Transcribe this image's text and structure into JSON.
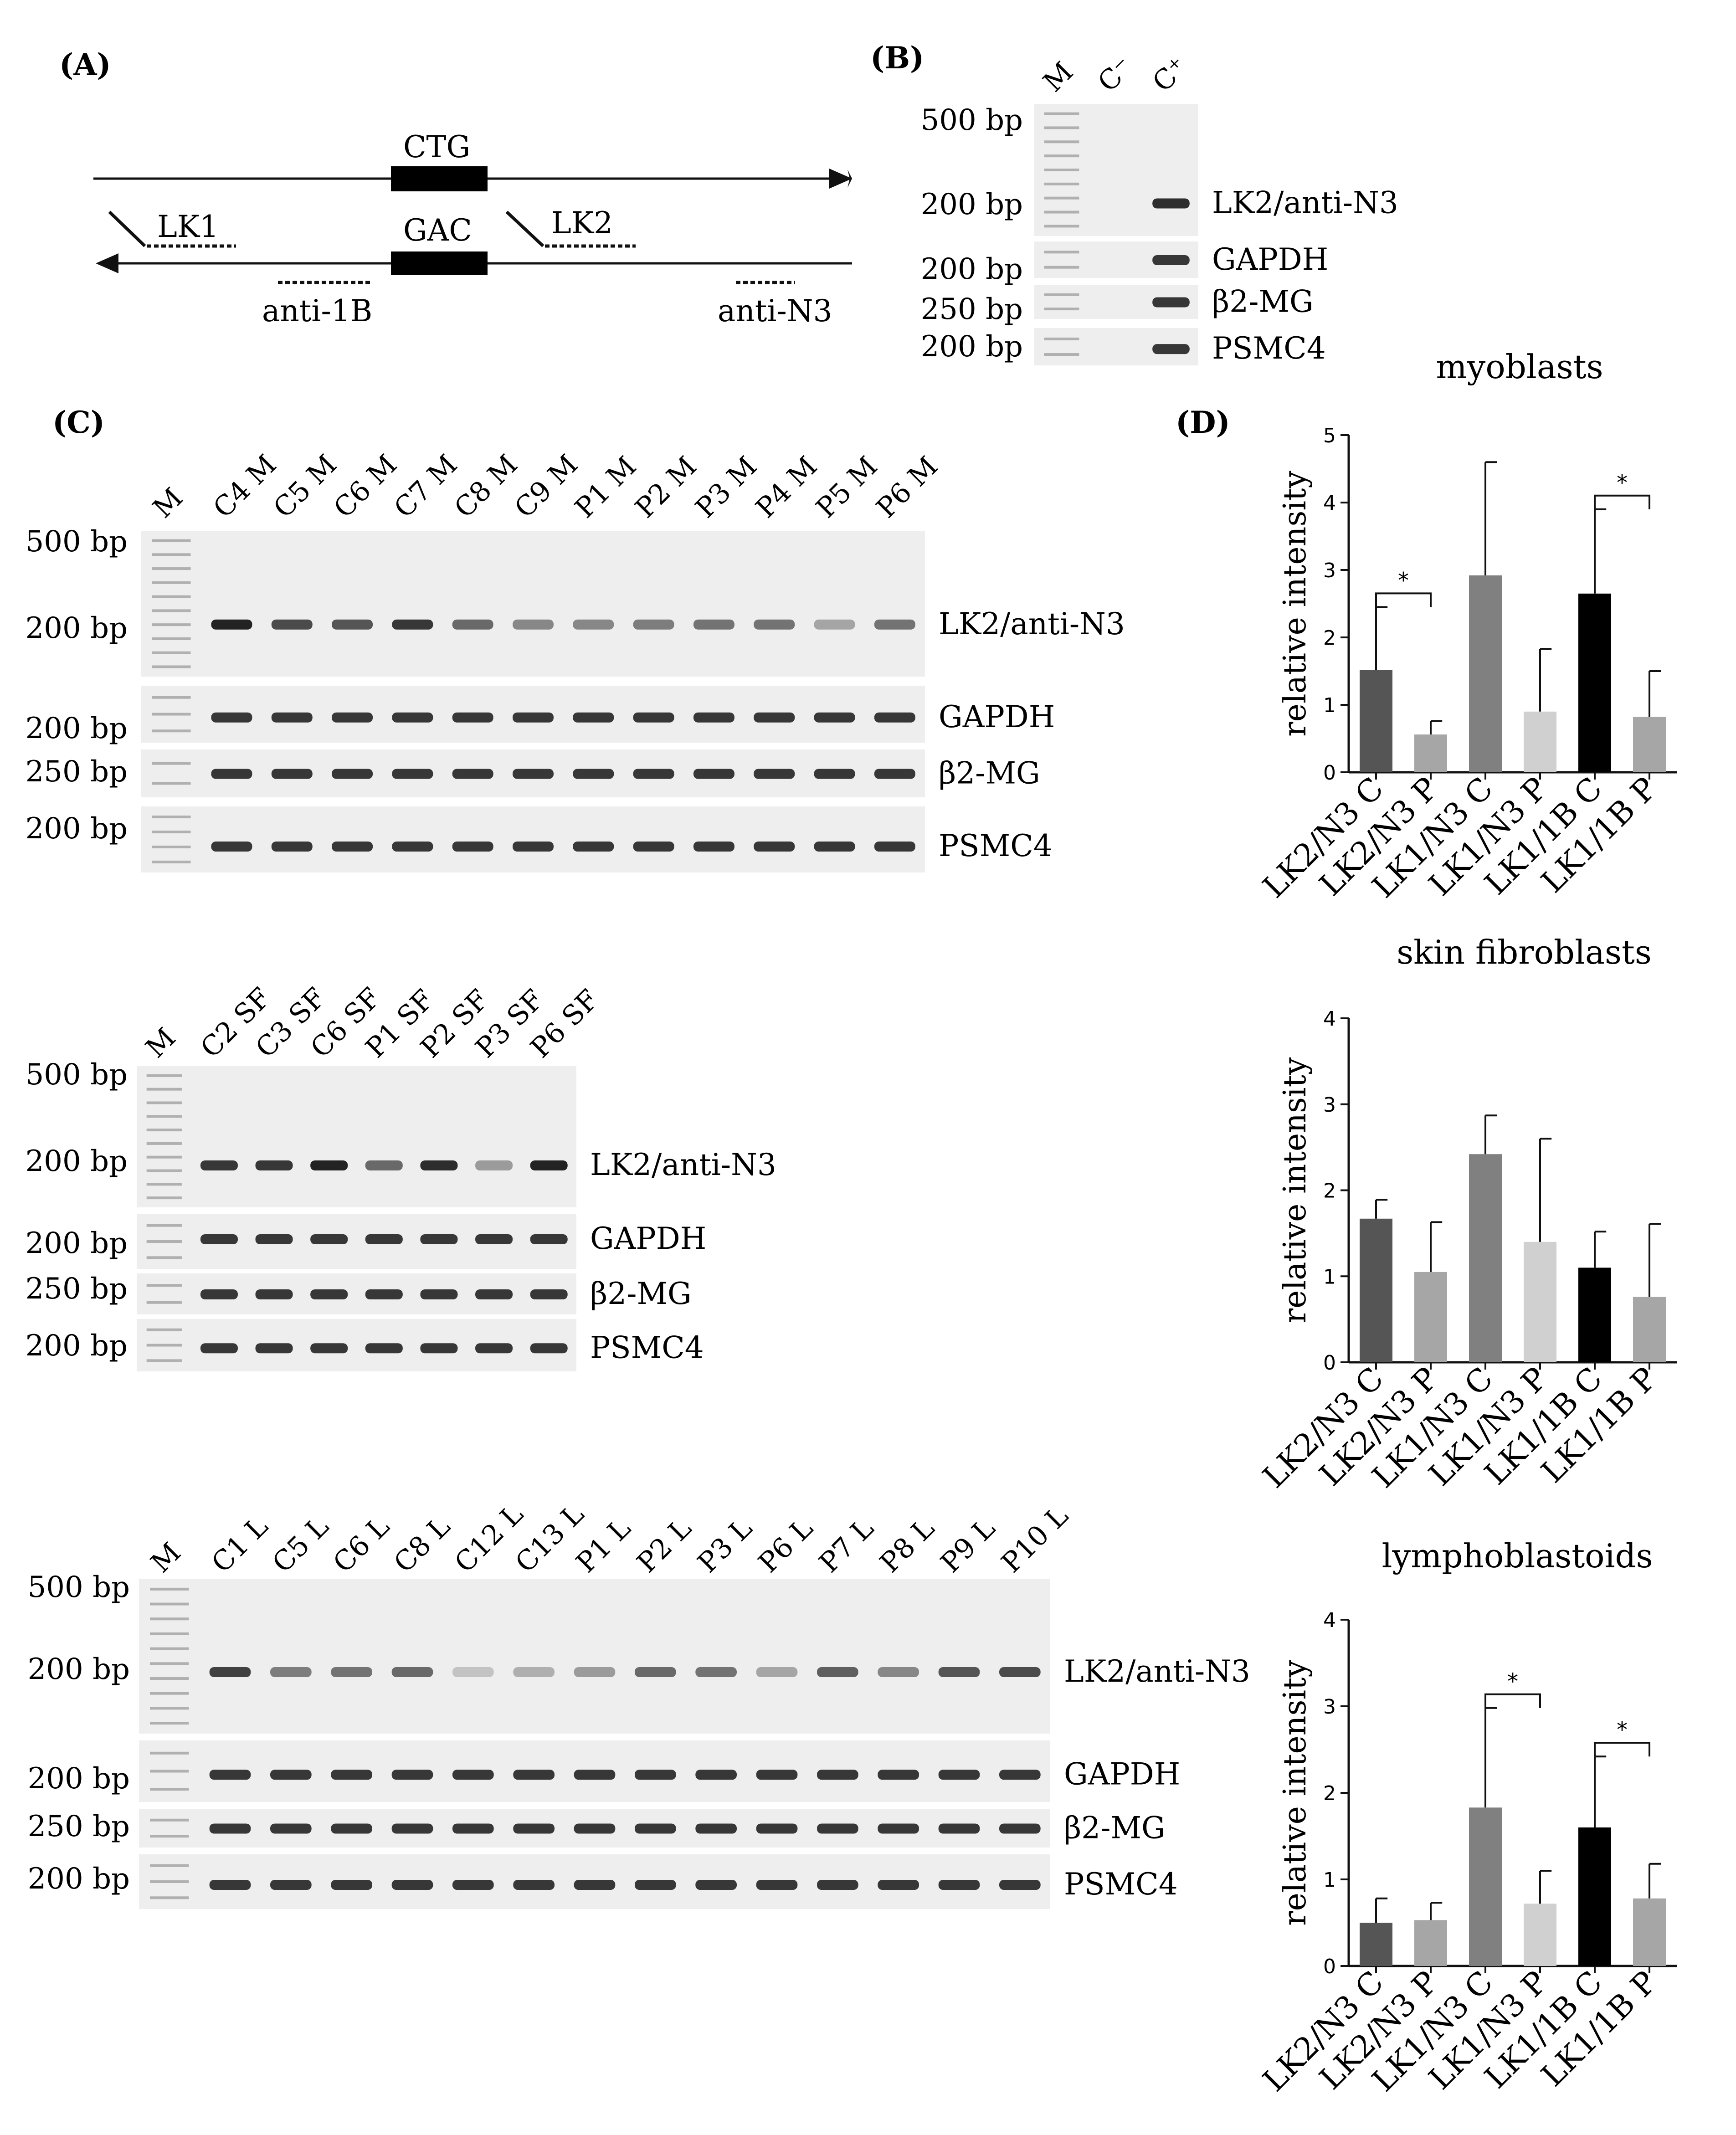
{
  "panels": {
    "a": "(A)",
    "b": "(B)",
    "c": "(C)",
    "d": "(D)"
  },
  "diagram_a": {
    "ctg": "CTG",
    "gac": "GAC",
    "lk1": "LK1",
    "lk2": "LK2",
    "anti1b": "anti-1B",
    "antin3": "anti-N3"
  },
  "gel_b": {
    "lanes": [
      "M",
      "C⁻",
      "C⁺"
    ],
    "markers": [
      "500 bp",
      "200 bp",
      "200 bp",
      "250 bp",
      "200 bp"
    ],
    "rows": [
      "LK2/anti-N3",
      "GAPDH",
      "β2-MG",
      "PSMC4"
    ]
  },
  "gel_myo": {
    "lanes": [
      "M",
      "C4 M",
      "C5 M",
      "C6 M",
      "C7 M",
      "C8 M",
      "C9 M",
      "P1 M",
      "P2 M",
      "P3 M",
      "P4 M",
      "P5 M",
      "P6 M"
    ],
    "markers": [
      "500 bp",
      "200 bp",
      "200 bp",
      "250 bp",
      "200 bp"
    ],
    "rows": [
      "LK2/anti-N3",
      "GAPDH",
      "β2-MG",
      "PSMC4"
    ],
    "band_intensity": [
      0.95,
      0.75,
      0.7,
      0.85,
      0.6,
      0.45,
      0.45,
      0.5,
      0.55,
      0.55,
      0.3,
      0.55
    ]
  },
  "gel_sf": {
    "lanes": [
      "M",
      "C2 SF",
      "C3 SF",
      "C6 SF",
      "P1 SF",
      "P2 SF",
      "P3 SF",
      "P6 SF"
    ],
    "markers": [
      "500 bp",
      "200 bp",
      "200 bp",
      "250 bp",
      "200 bp"
    ],
    "rows": [
      "LK2/anti-N3",
      "GAPDH",
      "β2-MG",
      "PSMC4"
    ],
    "band_intensity": [
      0.85,
      0.85,
      0.95,
      0.6,
      0.9,
      0.35,
      0.95
    ]
  },
  "gel_lymph": {
    "lanes": [
      "M",
      "C1 L",
      "C5 L",
      "C6 L",
      "C8 L",
      "C12 L",
      "C13 L",
      "P1 L",
      "P2 L",
      "P3 L",
      "P6 L",
      "P7 L",
      "P8 L",
      "P9 L",
      "P10 L"
    ],
    "markers": [
      "500 bp",
      "200 bp",
      "200 bp",
      "250 bp",
      "200 bp"
    ],
    "rows": [
      "LK2/anti-N3",
      "GAPDH",
      "β2-MG",
      "PSMC4"
    ],
    "band_intensity": [
      0.8,
      0.5,
      0.55,
      0.6,
      0.15,
      0.25,
      0.35,
      0.6,
      0.55,
      0.3,
      0.65,
      0.45,
      0.7,
      0.75
    ]
  },
  "chart_data": [
    {
      "type": "bar",
      "title": "myoblasts",
      "ylabel": "relative intensity",
      "categories": [
        "LK2/N3 C",
        "LK2/N3 P",
        "LK1/N3 C",
        "LK1/N3 P",
        "LK1/1B C",
        "LK1/1B P"
      ],
      "values": [
        1.52,
        0.56,
        2.92,
        0.9,
        2.65,
        0.82
      ],
      "errors": [
        0.93,
        0.2,
        1.68,
        0.93,
        1.25,
        0.68
      ],
      "ylim": [
        0,
        5
      ],
      "yticks": [
        "0",
        "1",
        "2",
        "3",
        "4",
        "5"
      ],
      "colors": [
        "#555555",
        "#a6a6a6",
        "#808080",
        "#d0d0d0",
        "#000000",
        "#a6a6a6"
      ],
      "significance": [
        {
          "from": 0,
          "to": 1,
          "label": "*"
        },
        {
          "from": 4,
          "to": 5,
          "label": "*"
        }
      ]
    },
    {
      "type": "bar",
      "title": "skin fibroblasts",
      "ylabel": "relative intensity",
      "categories": [
        "LK2/N3 C",
        "LK2/N3 P",
        "LK1/N3 C",
        "LK1/N3 P",
        "LK1/1B C",
        "LK1/1B P"
      ],
      "values": [
        1.67,
        1.05,
        2.42,
        1.4,
        1.1,
        0.76
      ],
      "errors": [
        0.22,
        0.58,
        0.45,
        1.2,
        0.42,
        0.85
      ],
      "ylim": [
        0,
        4
      ],
      "yticks": [
        "0",
        "1",
        "2",
        "3",
        "4"
      ],
      "colors": [
        "#555555",
        "#a6a6a6",
        "#808080",
        "#d0d0d0",
        "#000000",
        "#a6a6a6"
      ],
      "significance": []
    },
    {
      "type": "bar",
      "title": "lymphoblastoids",
      "ylabel": "relative intensity",
      "categories": [
        "LK2/N3 C",
        "LK2/N3 P",
        "LK1/N3 C",
        "LK1/N3 P",
        "LK1/1B C",
        "LK1/1B P"
      ],
      "values": [
        0.5,
        0.53,
        1.83,
        0.72,
        1.6,
        0.78
      ],
      "errors": [
        0.28,
        0.2,
        1.15,
        0.38,
        0.82,
        0.4
      ],
      "ylim": [
        0,
        4
      ],
      "yticks": [
        "0",
        "1",
        "2",
        "3",
        "4"
      ],
      "colors": [
        "#555555",
        "#a6a6a6",
        "#808080",
        "#d0d0d0",
        "#000000",
        "#a6a6a6"
      ],
      "significance": [
        {
          "from": 2,
          "to": 3,
          "label": "*"
        },
        {
          "from": 4,
          "to": 5,
          "label": "*"
        }
      ]
    }
  ]
}
